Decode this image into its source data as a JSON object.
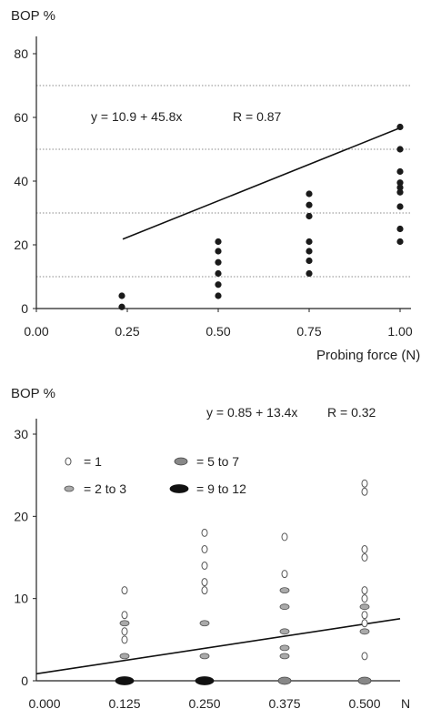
{
  "chart_data": [
    {
      "type": "scatter",
      "ylabel": "BOP %",
      "xlabel": "Probing force (N)",
      "equation": "y = 10.9 + 45.8x",
      "r_value": "R = 0.87",
      "xlim": [
        0.0,
        1.0
      ],
      "ylim": [
        0,
        80
      ],
      "x_ticks": [
        "0.00",
        "0.25",
        "0.50",
        "0.75",
        "1.00"
      ],
      "x_tick_values": [
        0.0,
        0.25,
        0.5,
        0.75,
        1.0
      ],
      "y_ticks": [
        "0",
        "20",
        "40",
        "60",
        "80"
      ],
      "y_tick_values": [
        0,
        20,
        40,
        60,
        80
      ],
      "grid": "dotted horizontal lines at 10, 30, 50, 70",
      "gridlines": [
        10,
        30,
        50,
        70
      ],
      "series": [
        {
          "points": [
            [
              0.235,
              4
            ],
            [
              0.235,
              0.5
            ],
            [
              0.5,
              21
            ],
            [
              0.5,
              18
            ],
            [
              0.5,
              14.5
            ],
            [
              0.5,
              11
            ],
            [
              0.5,
              7.5
            ],
            [
              0.5,
              4
            ],
            [
              0.75,
              36
            ],
            [
              0.75,
              32.5
            ],
            [
              0.75,
              29
            ],
            [
              0.75,
              21
            ],
            [
              0.75,
              18
            ],
            [
              0.75,
              15
            ],
            [
              0.75,
              11
            ],
            [
              1.0,
              57
            ],
            [
              1.0,
              50
            ],
            [
              1.0,
              43
            ],
            [
              1.0,
              39.5
            ],
            [
              1.0,
              38
            ],
            [
              1.0,
              36.5
            ],
            [
              1.0,
              32
            ],
            [
              1.0,
              25
            ],
            [
              1.0,
              21
            ]
          ]
        }
      ],
      "regression": {
        "intercept": 10.9,
        "slope": 45.8,
        "x_from": 0.2375,
        "x_to": 1.0
      }
    },
    {
      "type": "scatter",
      "ylabel": "BOP %",
      "xlabel": "N",
      "equation": "y = 0.85 + 13.4x",
      "r_value": "R = 0.32",
      "xlim": [
        0.0,
        0.5
      ],
      "ylim": [
        0,
        30
      ],
      "x_ticks": [
        "0.000",
        "0.125",
        "0.250",
        "0.375",
        "0.500"
      ],
      "x_tick_values": [
        0.0,
        0.125,
        0.25,
        0.375,
        0.5
      ],
      "y_ticks": [
        "0",
        "10",
        "20",
        "30"
      ],
      "y_tick_values": [
        0,
        10,
        20,
        30
      ],
      "legend": [
        {
          "label": "= 1",
          "key": "1"
        },
        {
          "label": "= 5 to 7",
          "key": "5-7"
        },
        {
          "label": "= 2 to 3",
          "key": "2-3"
        },
        {
          "label": "= 9 to 12",
          "key": "9-12"
        }
      ],
      "points": [
        {
          "x": 0.125,
          "y": 11,
          "n": "1"
        },
        {
          "x": 0.125,
          "y": 8,
          "n": "1"
        },
        {
          "x": 0.125,
          "y": 7,
          "n": "2-3"
        },
        {
          "x": 0.125,
          "y": 6,
          "n": "1"
        },
        {
          "x": 0.125,
          "y": 5,
          "n": "1"
        },
        {
          "x": 0.125,
          "y": 3,
          "n": "2-3"
        },
        {
          "x": 0.125,
          "y": 0,
          "n": "9-12"
        },
        {
          "x": 0.25,
          "y": 18,
          "n": "1"
        },
        {
          "x": 0.25,
          "y": 16,
          "n": "1"
        },
        {
          "x": 0.25,
          "y": 14,
          "n": "1"
        },
        {
          "x": 0.25,
          "y": 12,
          "n": "1"
        },
        {
          "x": 0.25,
          "y": 11,
          "n": "1"
        },
        {
          "x": 0.25,
          "y": 7,
          "n": "2-3"
        },
        {
          "x": 0.25,
          "y": 3,
          "n": "2-3"
        },
        {
          "x": 0.25,
          "y": 0,
          "n": "9-12"
        },
        {
          "x": 0.375,
          "y": 17.5,
          "n": "1"
        },
        {
          "x": 0.375,
          "y": 13,
          "n": "1"
        },
        {
          "x": 0.375,
          "y": 11,
          "n": "2-3"
        },
        {
          "x": 0.375,
          "y": 9,
          "n": "2-3"
        },
        {
          "x": 0.375,
          "y": 6,
          "n": "2-3"
        },
        {
          "x": 0.375,
          "y": 4,
          "n": "2-3"
        },
        {
          "x": 0.375,
          "y": 3,
          "n": "2-3"
        },
        {
          "x": 0.375,
          "y": 0,
          "n": "5-7"
        },
        {
          "x": 0.5,
          "y": 24,
          "n": "1"
        },
        {
          "x": 0.5,
          "y": 23,
          "n": "1"
        },
        {
          "x": 0.5,
          "y": 16,
          "n": "1"
        },
        {
          "x": 0.5,
          "y": 15,
          "n": "1"
        },
        {
          "x": 0.5,
          "y": 11,
          "n": "1"
        },
        {
          "x": 0.5,
          "y": 10,
          "n": "1"
        },
        {
          "x": 0.5,
          "y": 9,
          "n": "2-3"
        },
        {
          "x": 0.5,
          "y": 8,
          "n": "1"
        },
        {
          "x": 0.5,
          "y": 7,
          "n": "1"
        },
        {
          "x": 0.5,
          "y": 6,
          "n": "2-3"
        },
        {
          "x": 0.5,
          "y": 3,
          "n": "1"
        },
        {
          "x": 0.5,
          "y": 0,
          "n": "5-7"
        }
      ],
      "regression": {
        "intercept": 0.85,
        "slope": 13.4,
        "x_from": 0.0,
        "x_to": 0.5
      }
    }
  ]
}
